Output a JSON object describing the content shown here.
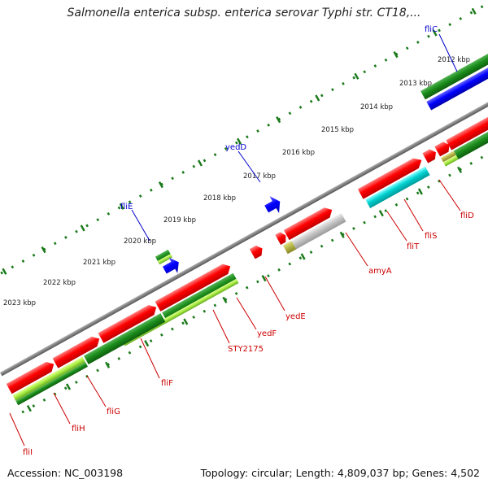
{
  "title": "Salmonella enterica subsp. enterica serovar Typhi str. CT18,...",
  "footer": {
    "accession": "Accession: NC_003198",
    "topology": "Topology: circular; Length: 4,809,037 bp; Genes: 4,502"
  },
  "scale_ticks": [
    "2012 kbp",
    "2013 kbp",
    "2014 kbp",
    "2015 kbp",
    "2016 kbp",
    "2017 kbp",
    "2018 kbp",
    "2019 kbp",
    "2020 kbp",
    "2021 kbp",
    "2022 kbp",
    "2023 kbp"
  ],
  "colors": {
    "forward_gene": "#ff0000",
    "forward_cds": "#1a8c1a",
    "forward_cds_light": "#66cc33",
    "reverse_gene": "#0000ff",
    "rna": "#00cccc",
    "pseudo": "#bbbbbb",
    "misc": "#b0b040",
    "backbone": "#808080",
    "label_forward": "#cc0000",
    "label_reverse": "#0000cc",
    "tick_dots": "#1a7a1a"
  },
  "gene_labels_reverse": [
    "fliC",
    "yedD",
    "fliE"
  ],
  "gene_labels_forward": [
    "fliD",
    "fliS",
    "fliT",
    "amyA",
    "yedE",
    "yedF",
    "STY2175",
    "fliF",
    "fliG",
    "fliH",
    "fliI"
  ]
}
